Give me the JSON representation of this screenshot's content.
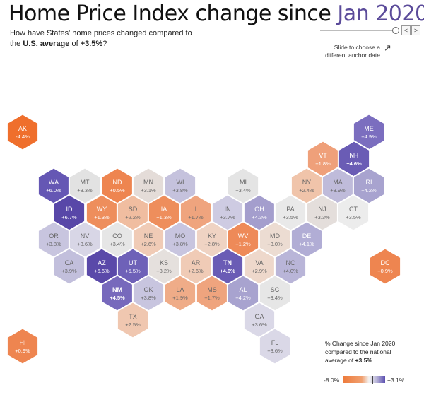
{
  "header": {
    "title_main": "Home Price Index change since",
    "title_anchor": "Jan 2020",
    "subtitle_line1": "How have States' home prices changed compared to",
    "subtitle_pre": "the ",
    "subtitle_us": "U.S. average",
    "subtitle_mid": " of ",
    "subtitle_avg": "+3.5%",
    "subtitle_post": "?"
  },
  "controls": {
    "prev_label": "<",
    "next_label": ">",
    "hint": "Slide to choose a different anchor date",
    "hint_arrow": "↗"
  },
  "legend": {
    "line1": "% Change since Jan 2020",
    "line2": "compared to the national",
    "line3_pre": "average of ",
    "line3_avg": "+3.5%",
    "min_label": "-8.0%",
    "max_label": "+3.1%"
  },
  "colors": {
    "strong_orange": "#ef6f2c",
    "light_orange": "#efa07a",
    "neutral": "#e3e3e3",
    "light_purple": "#b5b0d4",
    "strong_purple": "#5748a8"
  },
  "states": [
    {
      "abbr": "AK",
      "value": "-4.4%",
      "color": "#ef6f2c",
      "light": true,
      "bold": false
    },
    {
      "abbr": "ME",
      "value": "+4.9%",
      "color": "#7b6ebf",
      "light": true,
      "bold": false
    },
    {
      "abbr": "VT",
      "value": "+1.8%",
      "color": "#efa07a",
      "light": true,
      "bold": false
    },
    {
      "abbr": "NH",
      "value": "+4.6%",
      "color": "#6a5cb5",
      "light": true,
      "bold": true
    },
    {
      "abbr": "WA",
      "value": "+6.0%",
      "color": "#6557b4",
      "light": true,
      "bold": false
    },
    {
      "abbr": "MT",
      "value": "+3.3%",
      "color": "#e2e2e2",
      "light": false,
      "bold": false
    },
    {
      "abbr": "ND",
      "value": "+0.5%",
      "color": "#ee8550",
      "light": true,
      "bold": false
    },
    {
      "abbr": "MN",
      "value": "+3.1%",
      "color": "#e4dcd8",
      "light": false,
      "bold": false
    },
    {
      "abbr": "WI",
      "value": "+3.8%",
      "color": "#c5c2dd",
      "light": false,
      "bold": false
    },
    {
      "abbr": "MI",
      "value": "+3.4%",
      "color": "#e4e4e4",
      "light": false,
      "bold": false
    },
    {
      "abbr": "NY",
      "value": "+2.4%",
      "color": "#f0c4aa",
      "light": false,
      "bold": false
    },
    {
      "abbr": "MA",
      "value": "+3.9%",
      "color": "#bfbbda",
      "light": false,
      "bold": false
    },
    {
      "abbr": "RI",
      "value": "+4.2%",
      "color": "#a8a3cf",
      "light": true,
      "bold": false
    },
    {
      "abbr": "ID",
      "value": "+6.7%",
      "color": "#5847a8",
      "light": true,
      "bold": false
    },
    {
      "abbr": "WY",
      "value": "+1.3%",
      "color": "#ee8e5c",
      "light": true,
      "bold": false
    },
    {
      "abbr": "SD",
      "value": "+2.2%",
      "color": "#f0bda0",
      "light": false,
      "bold": false
    },
    {
      "abbr": "IA",
      "value": "+1.3%",
      "color": "#ee8e5c",
      "light": true,
      "bold": false
    },
    {
      "abbr": "IL",
      "value": "+1.7%",
      "color": "#efa47e",
      "light": false,
      "bold": false
    },
    {
      "abbr": "IN",
      "value": "+3.7%",
      "color": "#cecbe2",
      "light": false,
      "bold": false
    },
    {
      "abbr": "OH",
      "value": "+4.3%",
      "color": "#a49ecd",
      "light": true,
      "bold": false
    },
    {
      "abbr": "PA",
      "value": "+3.5%",
      "color": "#e9e9e9",
      "light": false,
      "bold": false
    },
    {
      "abbr": "NJ",
      "value": "+3.3%",
      "color": "#e4dedb",
      "light": false,
      "bold": false
    },
    {
      "abbr": "CT",
      "value": "+3.5%",
      "color": "#ececec",
      "light": false,
      "bold": false
    },
    {
      "abbr": "OR",
      "value": "+3.8%",
      "color": "#c8c5df",
      "light": false,
      "bold": false
    },
    {
      "abbr": "NV",
      "value": "+3.6%",
      "color": "#d8d6e6",
      "light": false,
      "bold": false
    },
    {
      "abbr": "CO",
      "value": "+3.4%",
      "color": "#e6e6e6",
      "light": false,
      "bold": false
    },
    {
      "abbr": "NE",
      "value": "+2.6%",
      "color": "#f0cbb6",
      "light": false,
      "bold": false
    },
    {
      "abbr": "MO",
      "value": "+3.8%",
      "color": "#c8c5df",
      "light": false,
      "bold": false
    },
    {
      "abbr": "KY",
      "value": "+2.8%",
      "color": "#efd3c3",
      "light": false,
      "bold": false
    },
    {
      "abbr": "WV",
      "value": "+1.2%",
      "color": "#ee8a58",
      "light": true,
      "bold": false
    },
    {
      "abbr": "MD",
      "value": "+3.0%",
      "color": "#ecdcd2",
      "light": false,
      "bold": false
    },
    {
      "abbr": "DE",
      "value": "+4.1%",
      "color": "#b1add5",
      "light": true,
      "bold": false
    },
    {
      "abbr": "CA",
      "value": "+3.9%",
      "color": "#c2bfdc",
      "light": false,
      "bold": false
    },
    {
      "abbr": "AZ",
      "value": "+6.6%",
      "color": "#5a49a9",
      "light": true,
      "bold": false
    },
    {
      "abbr": "UT",
      "value": "+5.5%",
      "color": "#6e61b8",
      "light": true,
      "bold": false
    },
    {
      "abbr": "KS",
      "value": "+3.2%",
      "color": "#e5e0dd",
      "light": false,
      "bold": false
    },
    {
      "abbr": "AR",
      "value": "+2.6%",
      "color": "#f0cbb6",
      "light": false,
      "bold": false
    },
    {
      "abbr": "TN",
      "value": "+4.6%",
      "color": "#6a5cb5",
      "light": true,
      "bold": true
    },
    {
      "abbr": "VA",
      "value": "+2.9%",
      "color": "#eed8cb",
      "light": false,
      "bold": false
    },
    {
      "abbr": "NC",
      "value": "+4.0%",
      "color": "#b9b5d8",
      "light": false,
      "bold": false
    },
    {
      "abbr": "DC",
      "value": "+0.9%",
      "color": "#ee8550",
      "light": true,
      "bold": false
    },
    {
      "abbr": "NM",
      "value": "+4.5%",
      "color": "#7769bc",
      "light": true,
      "bold": true
    },
    {
      "abbr": "OK",
      "value": "+3.8%",
      "color": "#c8c5df",
      "light": false,
      "bold": false
    },
    {
      "abbr": "LA",
      "value": "+1.9%",
      "color": "#efac88",
      "light": false,
      "bold": false
    },
    {
      "abbr": "MS",
      "value": "+1.7%",
      "color": "#efa47e",
      "light": false,
      "bold": false
    },
    {
      "abbr": "AL",
      "value": "+4.2%",
      "color": "#a8a3cf",
      "light": true,
      "bold": false
    },
    {
      "abbr": "SC",
      "value": "+3.4%",
      "color": "#e6e6e6",
      "light": false,
      "bold": false
    },
    {
      "abbr": "TX",
      "value": "+2.5%",
      "color": "#f0c7b0",
      "light": false,
      "bold": false
    },
    {
      "abbr": "GA",
      "value": "+3.6%",
      "color": "#dad8e7",
      "light": false,
      "bold": false
    },
    {
      "abbr": "HI",
      "value": "+0.9%",
      "color": "#ee8550",
      "light": true,
      "bold": false
    },
    {
      "abbr": "FL",
      "value": "+3.6%",
      "color": "#dad8e7",
      "light": false,
      "bold": false
    }
  ]
}
